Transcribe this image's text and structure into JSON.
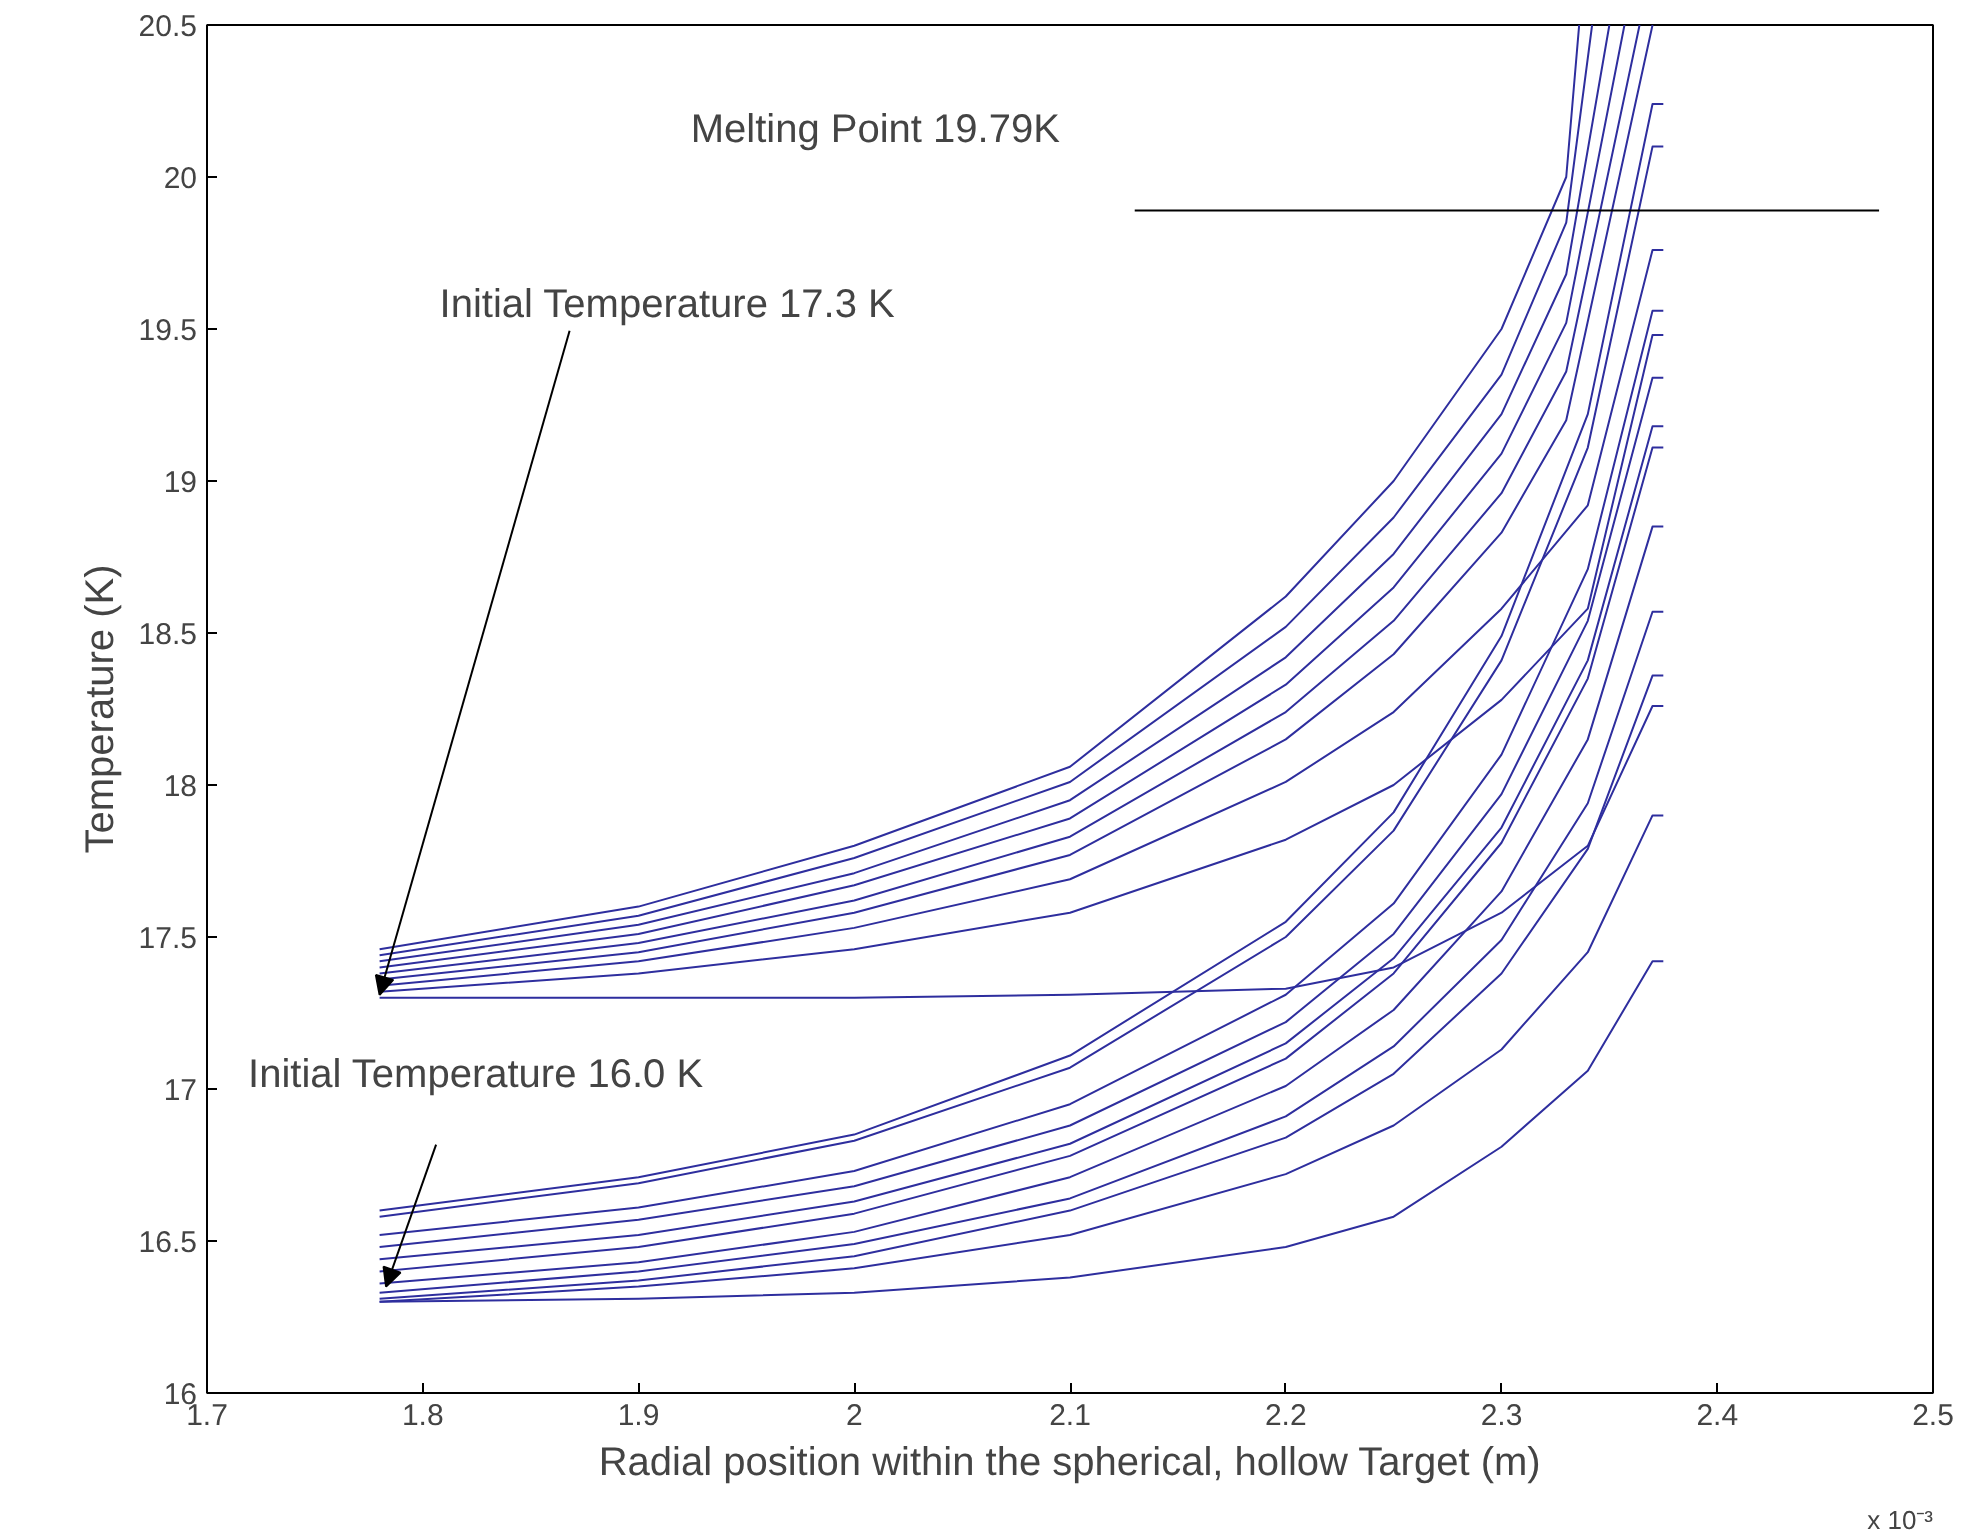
{
  "chart_data": {
    "type": "line",
    "xlabel": "Radial position within the spherical, hollow Target (m)",
    "ylabel": "Temperature (K)",
    "xlim": [
      1.7,
      2.5
    ],
    "xticks": [
      1.7,
      1.8,
      1.9,
      2,
      2.1,
      2.2,
      2.3,
      2.4,
      2.5
    ],
    "ylim": [
      16,
      20.5
    ],
    "yticks": [
      16,
      16.5,
      17,
      17.5,
      18,
      18.5,
      19,
      19.5,
      20,
      20.5
    ],
    "grid": false,
    "marker": "none",
    "line_style": "solid",
    "annotations": [
      {
        "text": "Melting Point 19.79K",
        "x": 2.13,
        "y": 19.89
      },
      {
        "text": "Initial Temperature 17.3 K",
        "x": 1.78,
        "y": 17.31
      },
      {
        "text": "Initial Temperature 16.0 K",
        "x": 1.783,
        "y": 16.35
      },
      "x 10⁻³"
    ],
    "series": [
      {
        "color": "#2e2e9e",
        "x": [
          1.78,
          1.9,
          2.0,
          2.1,
          2.2,
          2.25,
          2.3,
          2.33,
          2.336
        ],
        "values": [
          17.46,
          17.6,
          17.8,
          18.06,
          18.62,
          19.0,
          19.5,
          20.0,
          20.5
        ]
      },
      {
        "color": "#2e2e9e",
        "x": [
          1.78,
          1.9,
          2.0,
          2.1,
          2.2,
          2.25,
          2.3,
          2.33,
          2.342
        ],
        "values": [
          17.44,
          17.57,
          17.76,
          18.01,
          18.52,
          18.88,
          19.35,
          19.85,
          20.5
        ]
      },
      {
        "color": "#2e2e9e",
        "x": [
          1.78,
          1.9,
          2.0,
          2.1,
          2.2,
          2.25,
          2.3,
          2.33,
          2.35
        ],
        "values": [
          17.42,
          17.54,
          17.71,
          17.95,
          18.42,
          18.76,
          19.22,
          19.68,
          20.5
        ]
      },
      {
        "color": "#2e2e9e",
        "x": [
          1.78,
          1.9,
          2.0,
          2.1,
          2.2,
          2.25,
          2.3,
          2.33,
          2.357
        ],
        "values": [
          17.4,
          17.51,
          17.67,
          17.89,
          18.33,
          18.65,
          19.09,
          19.52,
          20.5
        ]
      },
      {
        "color": "#2e2e9e",
        "x": [
          1.78,
          1.9,
          2.0,
          2.1,
          2.2,
          2.25,
          2.3,
          2.33,
          2.364
        ],
        "values": [
          17.38,
          17.48,
          17.62,
          17.83,
          18.24,
          18.54,
          18.96,
          19.36,
          20.5
        ]
      },
      {
        "color": "#2e2e9e",
        "x": [
          1.78,
          1.9,
          2.0,
          2.1,
          2.2,
          2.25,
          2.3,
          2.33,
          2.37
        ],
        "values": [
          17.36,
          17.45,
          17.58,
          17.77,
          18.15,
          18.43,
          18.83,
          19.2,
          20.5
        ]
      },
      {
        "color": "#2e2e9e",
        "x": [
          1.78,
          1.9,
          2.0,
          2.1,
          2.2,
          2.25,
          2.3,
          2.34,
          2.37,
          2.375
        ],
        "values": [
          17.34,
          17.42,
          17.53,
          17.69,
          18.01,
          18.24,
          18.58,
          18.92,
          19.76,
          19.76
        ]
      },
      {
        "color": "#2e2e9e",
        "x": [
          1.78,
          1.9,
          2.0,
          2.1,
          2.2,
          2.25,
          2.3,
          2.34,
          2.37,
          2.375
        ],
        "values": [
          17.32,
          17.38,
          17.46,
          17.58,
          17.82,
          18.0,
          18.28,
          18.58,
          19.48,
          19.48
        ]
      },
      {
        "color": "#2e2e9e",
        "x": [
          1.78,
          1.9,
          2.0,
          2.1,
          2.2,
          2.25,
          2.3,
          2.34,
          2.37,
          2.375
        ],
        "values": [
          17.3,
          17.3,
          17.3,
          17.31,
          17.33,
          17.4,
          17.58,
          17.8,
          18.26,
          18.26
        ]
      },
      {
        "color": "#2e2e9e",
        "x": [
          1.78,
          1.9,
          2.0,
          2.1,
          2.2,
          2.25,
          2.3,
          2.34,
          2.37,
          2.375
        ],
        "values": [
          16.6,
          16.71,
          16.85,
          17.11,
          17.55,
          17.91,
          18.49,
          19.22,
          20.24,
          20.24
        ]
      },
      {
        "color": "#2e2e9e",
        "x": [
          1.78,
          1.9,
          2.0,
          2.1,
          2.2,
          2.25,
          2.3,
          2.34,
          2.37,
          2.375
        ],
        "values": [
          16.58,
          16.69,
          16.83,
          17.07,
          17.5,
          17.85,
          18.41,
          19.11,
          20.1,
          20.1
        ]
      },
      {
        "color": "#2e2e9e",
        "x": [
          1.78,
          1.9,
          2.0,
          2.1,
          2.2,
          2.25,
          2.3,
          2.34,
          2.37,
          2.375
        ],
        "values": [
          16.52,
          16.61,
          16.73,
          16.95,
          17.31,
          17.61,
          18.1,
          18.71,
          19.56,
          19.56
        ]
      },
      {
        "color": "#2e2e9e",
        "x": [
          1.78,
          1.9,
          2.0,
          2.1,
          2.2,
          2.25,
          2.3,
          2.34,
          2.37,
          2.375
        ],
        "values": [
          16.48,
          16.57,
          16.68,
          16.88,
          17.22,
          17.51,
          17.97,
          18.54,
          19.34,
          19.34
        ]
      },
      {
        "color": "#2e2e9e",
        "x": [
          1.78,
          1.9,
          2.0,
          2.1,
          2.2,
          2.25,
          2.3,
          2.34,
          2.37,
          2.375
        ],
        "values": [
          16.44,
          16.52,
          16.63,
          16.82,
          17.15,
          17.43,
          17.86,
          18.41,
          19.18,
          19.18
        ]
      },
      {
        "color": "#2e2e9e",
        "x": [
          1.78,
          1.9,
          2.0,
          2.1,
          2.2,
          2.25,
          2.3,
          2.34,
          2.37,
          2.375
        ],
        "values": [
          16.4,
          16.48,
          16.59,
          16.78,
          17.1,
          17.38,
          17.81,
          18.35,
          19.11,
          19.11
        ]
      },
      {
        "color": "#2e2e9e",
        "x": [
          1.78,
          1.9,
          2.0,
          2.1,
          2.2,
          2.25,
          2.3,
          2.34,
          2.37,
          2.375
        ],
        "values": [
          16.36,
          16.43,
          16.53,
          16.71,
          17.01,
          17.26,
          17.65,
          18.15,
          18.85,
          18.85
        ]
      },
      {
        "color": "#2e2e9e",
        "x": [
          1.78,
          1.9,
          2.0,
          2.1,
          2.2,
          2.25,
          2.3,
          2.34,
          2.37,
          2.375
        ],
        "values": [
          16.33,
          16.4,
          16.49,
          16.64,
          16.91,
          17.14,
          17.49,
          17.94,
          18.57,
          18.57
        ]
      },
      {
        "color": "#2e2e9e",
        "x": [
          1.78,
          1.9,
          2.0,
          2.1,
          2.2,
          2.25,
          2.3,
          2.34,
          2.37,
          2.375
        ],
        "values": [
          16.31,
          16.37,
          16.45,
          16.6,
          16.84,
          17.05,
          17.38,
          17.79,
          18.36,
          18.36
        ]
      },
      {
        "color": "#2e2e9e",
        "x": [
          1.78,
          1.9,
          2.0,
          2.1,
          2.2,
          2.25,
          2.3,
          2.34,
          2.37,
          2.375
        ],
        "values": [
          16.3,
          16.35,
          16.41,
          16.52,
          16.72,
          16.88,
          17.13,
          17.45,
          17.9,
          17.9
        ]
      },
      {
        "color": "#2e2e9e",
        "x": [
          1.78,
          1.9,
          2.0,
          2.1,
          2.2,
          2.25,
          2.3,
          2.34,
          2.37,
          2.375
        ],
        "values": [
          16.3,
          16.31,
          16.33,
          16.38,
          16.48,
          16.58,
          16.81,
          17.06,
          17.42,
          17.42
        ]
      },
      {
        "color": "#000000",
        "x": [
          2.13,
          2.475
        ],
        "values": [
          19.89,
          19.89
        ]
      }
    ]
  }
}
